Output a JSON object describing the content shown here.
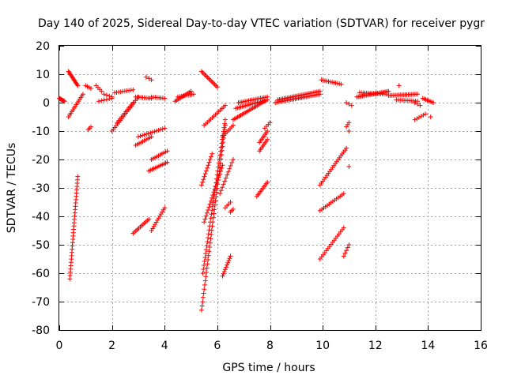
{
  "chart_data": {
    "type": "scatter",
    "title": "Day 140 of 2025, Sidereal Day-to-day VTEC variation (SDTVAR) for receiver pygr",
    "xlabel": "GPS time / hours",
    "ylabel": "SDTVAR / TECUs",
    "xlim": [
      0,
      16
    ],
    "ylim": [
      -80,
      20
    ],
    "x_ticks": [
      "0",
      "2",
      "4",
      "6",
      "8",
      "10",
      "12",
      "14",
      "16"
    ],
    "y_ticks": [
      "20",
      "10",
      "0",
      "-10",
      "-20",
      "-30",
      "-40",
      "-50",
      "-60",
      "-70",
      "-80"
    ],
    "grid": true,
    "marker": "+",
    "color": "#ff0000",
    "segments": [
      {
        "x0": 0.0,
        "y0": 1.5,
        "x1": 0.2,
        "y1": 0.5,
        "n": 8
      },
      {
        "x0": 0.35,
        "y0": 11,
        "x1": 0.7,
        "y1": 6,
        "n": 14
      },
      {
        "x0": 0.35,
        "y0": -5,
        "x1": 0.9,
        "y1": 3,
        "n": 14
      },
      {
        "x0": 0.4,
        "y0": -62,
        "x1": 0.7,
        "y1": -26,
        "n": 32
      },
      {
        "x0": 1.0,
        "y0": 6,
        "x1": 1.2,
        "y1": 5,
        "n": 4
      },
      {
        "x0": 1.1,
        "y0": -9.5,
        "x1": 1.2,
        "y1": -8.5,
        "n": 3
      },
      {
        "x0": 1.4,
        "y0": 6,
        "x1": 1.6,
        "y1": 4,
        "n": 4
      },
      {
        "x0": 1.5,
        "y0": 0.5,
        "x1": 2.0,
        "y1": 1.5,
        "n": 6
      },
      {
        "x0": 1.7,
        "y0": 3,
        "x1": 2.0,
        "y1": 2,
        "n": 4
      },
      {
        "x0": 2.0,
        "y0": -10,
        "x1": 3.0,
        "y1": 2,
        "n": 20
      },
      {
        "x0": 2.2,
        "y0": -7,
        "x1": 2.8,
        "y1": 0,
        "n": 12
      },
      {
        "x0": 2.1,
        "y0": 3.5,
        "x1": 2.8,
        "y1": 4.5,
        "n": 10
      },
      {
        "x0": 2.9,
        "y0": 2,
        "x1": 3.5,
        "y1": 1.5,
        "n": 10
      },
      {
        "x0": 2.8,
        "y0": -46,
        "x1": 3.4,
        "y1": -41,
        "n": 12
      },
      {
        "x0": 2.9,
        "y0": -15,
        "x1": 3.5,
        "y1": -12,
        "n": 10
      },
      {
        "x0": 3.0,
        "y0": -12,
        "x1": 4.0,
        "y1": -9,
        "n": 14
      },
      {
        "x0": 3.3,
        "y0": 9,
        "x1": 3.5,
        "y1": 8,
        "n": 3
      },
      {
        "x0": 3.5,
        "y0": 2,
        "x1": 4.0,
        "y1": 1.5,
        "n": 8
      },
      {
        "x0": 3.4,
        "y0": -24,
        "x1": 4.1,
        "y1": -21,
        "n": 12
      },
      {
        "x0": 3.5,
        "y0": -20,
        "x1": 4.1,
        "y1": -17,
        "n": 10
      },
      {
        "x0": 3.5,
        "y0": -45,
        "x1": 4.0,
        "y1": -37,
        "n": 12
      },
      {
        "x0": 4.4,
        "y0": 0.5,
        "x1": 5.0,
        "y1": 4,
        "n": 12
      },
      {
        "x0": 4.5,
        "y0": 2,
        "x1": 5.1,
        "y1": 3,
        "n": 10
      },
      {
        "x0": 5.4,
        "y0": 11,
        "x1": 6.0,
        "y1": 5.5,
        "n": 14
      },
      {
        "x0": 5.4,
        "y0": -73,
        "x1": 6.3,
        "y1": -8,
        "n": 45
      },
      {
        "x0": 5.45,
        "y0": -60,
        "x1": 6.3,
        "y1": -6,
        "n": 40
      },
      {
        "x0": 5.4,
        "y0": -29,
        "x1": 5.8,
        "y1": -18,
        "n": 12
      },
      {
        "x0": 5.5,
        "y0": -8,
        "x1": 6.3,
        "y1": -1,
        "n": 14
      },
      {
        "x0": 5.5,
        "y0": -42,
        "x1": 6.2,
        "y1": -22,
        "n": 20
      },
      {
        "x0": 6.2,
        "y0": -61,
        "x1": 6.5,
        "y1": -54,
        "n": 10
      },
      {
        "x0": 6.1,
        "y0": -32,
        "x1": 6.6,
        "y1": -20,
        "n": 12
      },
      {
        "x0": 6.2,
        "y0": -12,
        "x1": 6.6,
        "y1": -8,
        "n": 8
      },
      {
        "x0": 6.3,
        "y0": -37,
        "x1": 6.5,
        "y1": -35,
        "n": 4
      },
      {
        "x0": 6.5,
        "y0": -38.5,
        "x1": 6.6,
        "y1": -37.5,
        "n": 3
      },
      {
        "x0": 6.6,
        "y0": -6,
        "x1": 7.8,
        "y1": 0.5,
        "n": 22
      },
      {
        "x0": 6.7,
        "y0": -2,
        "x1": 7.9,
        "y1": 1,
        "n": 20
      },
      {
        "x0": 6.8,
        "y0": 0,
        "x1": 7.9,
        "y1": 2,
        "n": 18
      },
      {
        "x0": 7.5,
        "y0": -33,
        "x1": 7.9,
        "y1": -28,
        "n": 10
      },
      {
        "x0": 7.6,
        "y0": -14,
        "x1": 7.9,
        "y1": -10,
        "n": 8
      },
      {
        "x0": 7.6,
        "y0": -17,
        "x1": 7.9,
        "y1": -13,
        "n": 8
      },
      {
        "x0": 7.8,
        "y0": -9,
        "x1": 8.0,
        "y1": -7,
        "n": 4
      },
      {
        "x0": 8.2,
        "y0": 0,
        "x1": 9.9,
        "y1": 3,
        "n": 30
      },
      {
        "x0": 8.3,
        "y0": 1,
        "x1": 9.9,
        "y1": 4,
        "n": 28
      },
      {
        "x0": 9.9,
        "y0": -29,
        "x1": 10.9,
        "y1": -16,
        "n": 20
      },
      {
        "x0": 9.9,
        "y0": -38,
        "x1": 10.8,
        "y1": -32,
        "n": 14
      },
      {
        "x0": 9.9,
        "y0": -55,
        "x1": 10.8,
        "y1": -44,
        "n": 16
      },
      {
        "x0": 9.95,
        "y0": 8,
        "x1": 10.7,
        "y1": 6.5,
        "n": 12
      },
      {
        "x0": 10.8,
        "y0": -54,
        "x1": 11.0,
        "y1": -50,
        "n": 5
      },
      {
        "x0": 10.9,
        "y0": 0,
        "x1": 11.1,
        "y1": -1,
        "n": 3
      },
      {
        "x0": 10.9,
        "y0": -8.5,
        "x1": 11.0,
        "y1": -7,
        "n": 3
      },
      {
        "x0": 11.0,
        "y0": -22.5,
        "x1": 11.0,
        "y1": -22.5,
        "n": 1
      },
      {
        "x0": 11.0,
        "y0": -10,
        "x1": 11.0,
        "y1": -10,
        "n": 1
      },
      {
        "x0": 11.3,
        "y0": 2,
        "x1": 12.5,
        "y1": 4,
        "n": 24
      },
      {
        "x0": 11.4,
        "y0": 3.5,
        "x1": 12.4,
        "y1": 3,
        "n": 16
      },
      {
        "x0": 12.5,
        "y0": 2.5,
        "x1": 13.6,
        "y1": 3,
        "n": 20
      },
      {
        "x0": 12.8,
        "y0": 1,
        "x1": 13.6,
        "y1": 0.5,
        "n": 12
      },
      {
        "x0": 12.9,
        "y0": 6,
        "x1": 12.9,
        "y1": 6,
        "n": 1
      },
      {
        "x0": 13.5,
        "y0": 0,
        "x1": 13.7,
        "y1": -1,
        "n": 3
      },
      {
        "x0": 13.5,
        "y0": -6,
        "x1": 13.9,
        "y1": -4,
        "n": 6
      },
      {
        "x0": 13.8,
        "y0": 1.5,
        "x1": 14.2,
        "y1": 0,
        "n": 8
      },
      {
        "x0": 14.1,
        "y0": -5,
        "x1": 14.1,
        "y1": -5,
        "n": 1
      }
    ]
  }
}
